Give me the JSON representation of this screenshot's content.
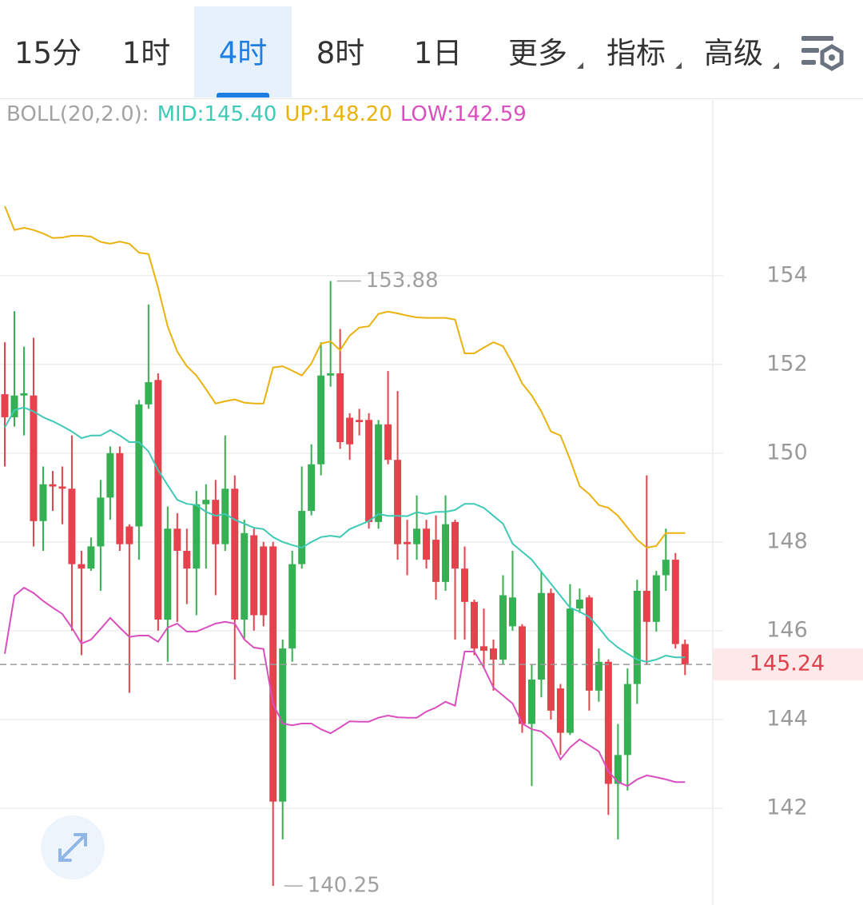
{
  "tabs": {
    "items": [
      "15分",
      "1时",
      "4时",
      "8时",
      "1日",
      "更多",
      "指标",
      "高级"
    ],
    "active": 2
  },
  "chart_data": {
    "type": "candlestick",
    "indicator": "BOLL(20,2.0):",
    "up_color": "#35b053",
    "down_color": "#e5424e",
    "open": [
      151.33,
      150.81,
      151.3,
      151.3,
      148.47,
      149.3,
      149.25,
      149.2,
      147.5,
      147.4,
      147.9,
      149.0,
      150.0,
      148.35,
      148.35,
      151.1,
      151.65,
      146.25,
      148.3,
      147.8,
      147.4,
      148.85,
      148.95,
      147.95,
      149.2,
      146.25,
      148.15,
      147.9,
      147.9,
      142.15,
      145.6,
      147.5,
      148.7,
      149.75,
      151.75,
      151.8,
      150.8,
      150.75,
      150.75,
      148.45,
      150.65,
      149.85,
      148.0,
      147.95,
      148.3,
      148.05,
      147.1,
      148.45,
      147.4,
      146.65,
      145.65,
      145.6,
      145.35,
      146.1,
      146.1,
      143.9,
      144.9,
      146.85,
      144.7,
      143.7,
      146.5,
      146.75,
      144.65,
      145.3,
      142.55,
      143.2,
      144.8,
      146.9,
      146.2,
      147.25,
      147.6,
      145.7
    ],
    "high": [
      152.5,
      153.2,
      152.4,
      152.6,
      149.7,
      149.6,
      149.7,
      150.4,
      147.8,
      148.1,
      149.4,
      150.15,
      150.15,
      148.4,
      151.2,
      153.35,
      151.8,
      148.8,
      148.65,
      148.3,
      149.15,
      149.3,
      149.4,
      150.4,
      149.5,
      148.5,
      148.3,
      148.0,
      148.0,
      145.8,
      147.8,
      149.7,
      150.2,
      152.5,
      153.88,
      152.8,
      150.9,
      151.0,
      150.9,
      150.75,
      151.85,
      151.4,
      148.5,
      149.05,
      148.5,
      148.6,
      149.05,
      148.5,
      147.9,
      146.7,
      146.5,
      145.8,
      147.25,
      147.8,
      146.15,
      145.25,
      147.35,
      146.95,
      144.8,
      147.05,
      146.95,
      146.8,
      145.6,
      145.35,
      143.9,
      145.15,
      147.15,
      149.5,
      147.35,
      148.3,
      147.75,
      145.8
    ],
    "low": [
      149.7,
      150.6,
      150.4,
      147.9,
      147.8,
      148.7,
      148.4,
      146.0,
      145.45,
      147.35,
      146.9,
      148.5,
      147.8,
      144.6,
      147.6,
      151.0,
      146.0,
      145.3,
      146.2,
      146.6,
      146.35,
      147.4,
      146.8,
      147.8,
      144.9,
      145.8,
      146.0,
      146.1,
      140.25,
      141.3,
      145.3,
      147.4,
      148.6,
      149.5,
      151.5,
      150.1,
      149.85,
      150.4,
      148.3,
      148.3,
      149.75,
      147.6,
      147.25,
      147.6,
      147.4,
      146.7,
      146.9,
      145.8,
      145.8,
      145.45,
      145.15,
      144.65,
      145.25,
      146.0,
      143.7,
      142.5,
      144.5,
      144.0,
      143.2,
      143.65,
      146.4,
      144.2,
      144.4,
      141.85,
      141.3,
      142.4,
      144.35,
      145.25,
      145.98,
      146.9,
      145.6,
      145.0
    ],
    "close": [
      150.81,
      151.3,
      151.35,
      148.47,
      149.3,
      149.25,
      149.2,
      147.5,
      147.4,
      147.9,
      149.0,
      150.0,
      147.95,
      147.95,
      151.1,
      151.6,
      146.25,
      148.3,
      147.8,
      147.4,
      148.85,
      148.95,
      147.95,
      149.2,
      146.25,
      148.2,
      146.35,
      146.35,
      142.15,
      145.6,
      147.5,
      148.7,
      149.75,
      151.75,
      151.8,
      150.25,
      150.2,
      150.7,
      148.45,
      150.65,
      149.85,
      147.95,
      147.95,
      148.3,
      147.6,
      147.1,
      148.4,
      147.4,
      146.65,
      145.6,
      145.55,
      145.35,
      146.8,
      146.75,
      143.9,
      144.9,
      146.85,
      144.2,
      143.7,
      146.5,
      146.7,
      144.65,
      145.3,
      142.55,
      143.2,
      144.8,
      146.9,
      146.2,
      147.25,
      147.6,
      145.7,
      145.24
    ],
    "series": [
      {
        "name": "MID",
        "legend_label": "MID:145.40",
        "color": "#3fc9b7",
        "values": [
          150.58,
          150.97,
          151.03,
          150.94,
          150.81,
          150.72,
          150.61,
          150.49,
          150.34,
          150.4,
          150.4,
          150.52,
          150.4,
          150.25,
          150.25,
          150.04,
          149.62,
          149.28,
          148.95,
          148.86,
          148.83,
          148.68,
          148.59,
          148.63,
          148.5,
          148.41,
          148.32,
          148.29,
          148.11,
          148.0,
          147.93,
          147.87,
          148.0,
          148.11,
          148.14,
          148.11,
          148.29,
          148.38,
          148.47,
          148.63,
          148.59,
          148.59,
          148.58,
          148.67,
          148.63,
          148.68,
          148.68,
          148.72,
          148.86,
          148.86,
          148.77,
          148.59,
          148.41,
          147.96,
          147.78,
          147.6,
          147.33,
          147.06,
          146.79,
          146.52,
          146.43,
          146.31,
          146.07,
          145.8,
          145.62,
          145.48,
          145.35,
          145.3,
          145.35,
          145.44,
          145.4,
          145.4
        ]
      },
      {
        "name": "UP",
        "legend_label": "UP:148.20",
        "color": "#eab20e",
        "values": [
          155.57,
          155.03,
          155.08,
          155.03,
          154.95,
          154.85,
          154.86,
          154.9,
          154.9,
          154.88,
          154.76,
          154.72,
          154.77,
          154.72,
          154.52,
          154.49,
          153.73,
          152.86,
          152.29,
          151.96,
          151.75,
          151.44,
          151.12,
          151.17,
          151.21,
          151.14,
          151.12,
          151.12,
          151.93,
          151.96,
          151.86,
          151.75,
          152.02,
          152.47,
          152.52,
          152.32,
          152.65,
          152.83,
          152.86,
          153.14,
          153.19,
          153.15,
          153.1,
          153.06,
          153.05,
          153.05,
          153.05,
          153.01,
          152.25,
          152.25,
          152.38,
          152.5,
          152.41,
          152.02,
          151.57,
          151.3,
          150.94,
          150.49,
          150.4,
          149.86,
          149.26,
          149.08,
          148.83,
          148.77,
          148.59,
          148.32,
          148.05,
          147.87,
          147.91,
          148.2,
          148.2,
          148.2
        ]
      },
      {
        "name": "LOW",
        "legend_label": "LOW:142.59",
        "color": "#d94fbf",
        "values": [
          145.48,
          146.79,
          146.97,
          146.85,
          146.67,
          146.52,
          146.38,
          146.07,
          145.71,
          145.8,
          146.04,
          146.29,
          146.07,
          145.86,
          145.89,
          145.89,
          145.75,
          146.07,
          146.16,
          145.98,
          145.98,
          146.07,
          146.16,
          146.2,
          146.16,
          145.8,
          145.62,
          145.59,
          144.36,
          143.91,
          143.87,
          143.91,
          143.91,
          143.78,
          143.69,
          143.82,
          143.96,
          143.95,
          143.95,
          144.04,
          144.09,
          144.05,
          144.04,
          144.04,
          144.18,
          144.27,
          144.4,
          144.31,
          145.53,
          145.53,
          145.17,
          144.72,
          144.54,
          144.36,
          143.91,
          143.78,
          143.73,
          143.55,
          143.1,
          143.37,
          143.55,
          143.42,
          143.28,
          142.83,
          142.59,
          142.5,
          142.65,
          142.74,
          142.7,
          142.65,
          142.59,
          142.59
        ]
      }
    ],
    "ylim": [
      139.82,
      157.96
    ],
    "yticks": [
      142,
      144,
      146,
      148,
      150,
      152,
      154
    ],
    "grid": true,
    "high_label": 153.88,
    "low_label": 140.25,
    "last_price": 145.24
  }
}
